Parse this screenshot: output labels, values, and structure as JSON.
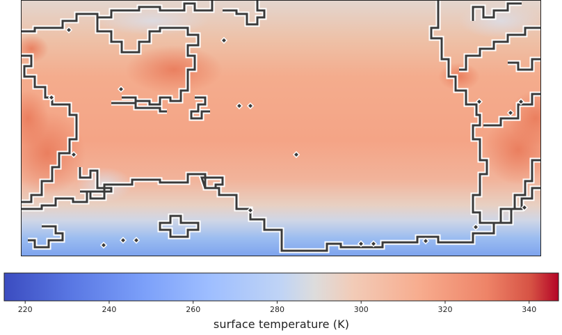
{
  "map": {
    "field": "surface temperature",
    "colormap": "coolwarm",
    "coastline_style": "dark gray outline with white halo",
    "region": "Pacific-centered equirectangular view; land masses: East Asia and Australia on the left, the Americas on the right, Antarctic coast along the bottom",
    "colors": {
      "cold": "#3b4cc0",
      "neutral": "#dddddd",
      "warm": "#f4a582",
      "hot": "#b40426",
      "coastline": "#3a3a3a",
      "coastline_halo": "#ffffff"
    }
  },
  "colorbar": {
    "min": 215,
    "max": 347,
    "ticks": [
      "220",
      "240",
      "260",
      "280",
      "300",
      "320",
      "340"
    ],
    "tick_values": [
      220,
      240,
      260,
      280,
      300,
      320,
      340
    ],
    "label": "surface temperature (K)",
    "orientation": "horizontal",
    "placement": "below map"
  }
}
